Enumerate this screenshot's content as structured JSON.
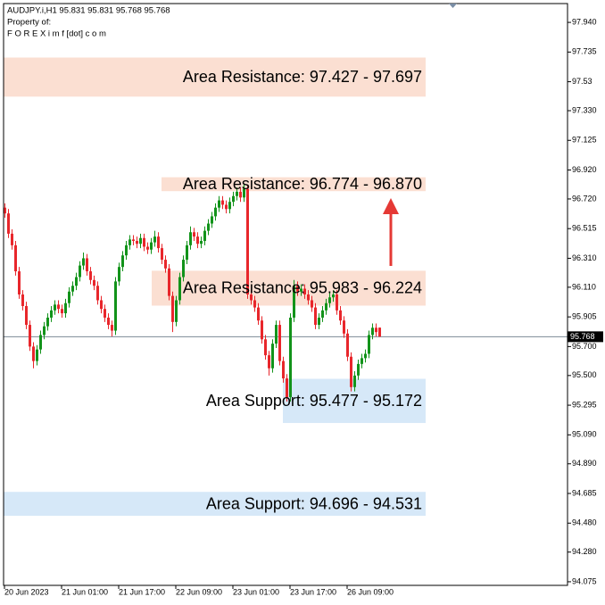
{
  "chart_data": {
    "type": "candlestick",
    "header": [
      "AUDJPY.i,H1  95.831 95.831 95.768 95.768",
      "Property of:",
      "F O R E X i m f [dot] c o m"
    ],
    "categories": [
      "20 Jun 2023",
      null,
      null,
      null,
      null,
      null,
      null,
      null,
      null,
      null,
      null,
      null,
      null,
      null,
      null,
      null,
      "21 Jun 01:00",
      null,
      null,
      null,
      null,
      null,
      null,
      null,
      null,
      null,
      null,
      null,
      null,
      null,
      null,
      null,
      "21 Jun 17:00",
      null,
      null,
      null,
      null,
      null,
      null,
      null,
      null,
      null,
      null,
      null,
      null,
      null,
      null,
      null,
      "22 Jun 09:00",
      null,
      null,
      null,
      null,
      null,
      null,
      null,
      null,
      null,
      null,
      null,
      null,
      null,
      null,
      null,
      "23 Jun 01:00",
      null,
      null,
      null,
      null,
      null,
      null,
      null,
      null,
      null,
      null,
      null,
      null,
      null,
      null,
      null,
      "23 Jun 17:00",
      null,
      null,
      null,
      null,
      null,
      null,
      null,
      null,
      null,
      null,
      null,
      null,
      null,
      null,
      null,
      "26 Jun 09:00",
      null,
      null,
      null,
      null,
      null,
      null,
      null,
      null,
      null
    ],
    "open": [
      96.66,
      96.62,
      96.48,
      96.4,
      96.22,
      96.06,
      95.98,
      95.85,
      95.7,
      95.6,
      95.68,
      95.78,
      95.84,
      95.9,
      95.95,
      95.99,
      95.96,
      95.93,
      96.0,
      96.08,
      96.12,
      96.18,
      96.26,
      96.31,
      96.22,
      96.16,
      96.12,
      96.02,
      95.96,
      95.9,
      95.85,
      95.81,
      96.15,
      96.25,
      96.33,
      96.4,
      96.44,
      96.43,
      96.41,
      96.45,
      96.39,
      96.37,
      96.42,
      96.46,
      96.38,
      96.3,
      96.24,
      96.05,
      95.87,
      96.02,
      96.18,
      96.3,
      96.4,
      96.49,
      96.46,
      96.41,
      96.43,
      96.5,
      96.55,
      96.6,
      96.66,
      96.71,
      96.68,
      96.65,
      96.7,
      96.74,
      96.77,
      96.73,
      96.79,
      96.06,
      96.02,
      95.97,
      95.88,
      95.75,
      95.64,
      95.55,
      95.72,
      95.85,
      95.6,
      95.48,
      95.35,
      95.9,
      96.12,
      96.08,
      96.1,
      96.06,
      96.02,
      95.97,
      95.85,
      95.9,
      95.95,
      96.0,
      96.04,
      96.06,
      95.95,
      95.88,
      95.79,
      95.63,
      95.42,
      95.5,
      95.58,
      95.62,
      95.65,
      95.78,
      95.83,
      95.831
    ],
    "high": [
      96.69,
      96.65,
      96.51,
      96.43,
      96.25,
      96.09,
      96.01,
      95.88,
      95.73,
      95.71,
      95.81,
      95.87,
      95.93,
      95.98,
      96.02,
      96.02,
      95.99,
      96.03,
      96.11,
      96.15,
      96.21,
      96.29,
      96.35,
      96.34,
      96.25,
      96.19,
      96.15,
      96.05,
      95.99,
      95.93,
      95.88,
      96.18,
      96.28,
      96.36,
      96.43,
      96.47,
      96.47,
      96.46,
      96.48,
      96.48,
      96.42,
      96.45,
      96.5,
      96.49,
      96.41,
      96.33,
      96.27,
      96.08,
      96.05,
      96.21,
      96.33,
      96.43,
      96.53,
      96.52,
      96.49,
      96.46,
      96.53,
      96.58,
      96.63,
      96.69,
      96.74,
      96.74,
      96.71,
      96.73,
      96.77,
      96.8,
      96.8,
      96.82,
      96.82,
      96.09,
      96.05,
      96.0,
      95.91,
      95.78,
      95.67,
      95.75,
      95.88,
      95.88,
      95.63,
      95.51,
      95.93,
      96.16,
      96.15,
      96.13,
      96.13,
      96.09,
      96.05,
      96.0,
      95.93,
      95.98,
      96.03,
      96.07,
      96.09,
      96.09,
      95.98,
      95.91,
      95.82,
      95.66,
      95.53,
      95.61,
      95.65,
      95.68,
      95.81,
      95.86,
      95.86,
      95.831
    ],
    "low": [
      96.59,
      96.45,
      96.37,
      96.19,
      96.03,
      95.95,
      95.82,
      95.67,
      95.55,
      95.57,
      95.65,
      95.75,
      95.81,
      95.87,
      95.92,
      95.93,
      95.9,
      95.9,
      95.97,
      96.05,
      96.09,
      96.15,
      96.23,
      96.19,
      96.13,
      96.09,
      95.99,
      95.93,
      95.87,
      95.82,
      95.77,
      95.78,
      96.12,
      96.22,
      96.3,
      96.37,
      96.4,
      96.38,
      96.38,
      96.36,
      96.34,
      96.34,
      96.39,
      96.35,
      96.27,
      96.21,
      96.02,
      95.8,
      95.84,
      95.99,
      96.15,
      96.27,
      96.37,
      96.43,
      96.38,
      96.38,
      96.4,
      96.47,
      96.52,
      96.57,
      96.63,
      96.65,
      96.62,
      96.62,
      96.67,
      96.71,
      96.7,
      96.7,
      96.03,
      95.99,
      95.94,
      95.85,
      95.72,
      95.61,
      95.5,
      95.52,
      95.69,
      95.57,
      95.45,
      95.32,
      95.32,
      95.87,
      96.05,
      96.05,
      96.03,
      95.99,
      95.94,
      95.82,
      95.82,
      95.87,
      95.92,
      95.97,
      96.01,
      95.92,
      95.85,
      95.76,
      95.6,
      95.39,
      95.39,
      95.47,
      95.55,
      95.59,
      95.62,
      95.75,
      95.77,
      95.768
    ],
    "close": [
      96.62,
      96.48,
      96.4,
      96.22,
      96.06,
      95.98,
      95.85,
      95.7,
      95.6,
      95.68,
      95.78,
      95.84,
      95.9,
      95.95,
      95.99,
      95.96,
      95.93,
      96.0,
      96.08,
      96.12,
      96.18,
      96.26,
      96.31,
      96.22,
      96.16,
      96.12,
      96.02,
      95.96,
      95.9,
      95.85,
      95.81,
      96.15,
      96.25,
      96.33,
      96.4,
      96.44,
      96.43,
      96.41,
      96.45,
      96.39,
      96.37,
      96.42,
      96.46,
      96.38,
      96.3,
      96.24,
      96.05,
      95.87,
      96.02,
      96.18,
      96.3,
      96.4,
      96.49,
      96.46,
      96.41,
      96.43,
      96.5,
      96.55,
      96.6,
      96.66,
      96.71,
      96.68,
      96.65,
      96.7,
      96.74,
      96.77,
      96.73,
      96.79,
      96.06,
      96.02,
      95.97,
      95.88,
      95.75,
      95.64,
      95.55,
      95.72,
      95.85,
      95.6,
      95.48,
      95.35,
      95.9,
      96.12,
      96.08,
      96.1,
      96.06,
      96.02,
      95.97,
      95.85,
      95.9,
      95.95,
      96.0,
      96.04,
      96.06,
      95.95,
      95.88,
      95.79,
      95.63,
      95.42,
      95.5,
      95.58,
      95.62,
      95.65,
      95.78,
      95.83,
      95.8,
      95.768
    ],
    "up_color": "#12931a",
    "down_color": "#e8262b",
    "last_price": 95.768,
    "zones": [
      {
        "label": "Area Resistance: 97.427 - 97.697",
        "low": 97.427,
        "high": 97.697,
        "color": "#fbdfd2"
      },
      {
        "label": "Area Resistance: 96.774 - 96.870",
        "low": 96.774,
        "high": 96.87,
        "color": "#fbdfd2"
      },
      {
        "label": "Area Resistance: 95.983 - 96.224",
        "low": 95.983,
        "high": 96.224,
        "color": "#fbdfd2"
      },
      {
        "label": "Area Support: 95.477 - 95.172",
        "low": 95.172,
        "high": 95.477,
        "color": "#d6e8f8"
      },
      {
        "label": "Area Support: 94.696 - 94.531",
        "low": 94.531,
        "high": 94.696,
        "color": "#d6e8f8"
      }
    ],
    "ylim": [
      94.05,
      98.07
    ],
    "yticks": [
      {
        "value": 97.94,
        "label": "97.940"
      },
      97.735,
      97.53,
      {
        "value": 97.33,
        "label": "97.330"
      },
      97.125,
      {
        "value": 96.92,
        "label": "96.920"
      },
      {
        "value": 96.72,
        "label": "96.720"
      },
      96.515,
      {
        "value": 96.31,
        "label": "96.310"
      },
      {
        "value": 96.11,
        "label": "96.110"
      },
      95.905,
      {
        "value": 95.7,
        "label": "95.700"
      },
      {
        "value": 95.5,
        "label": "95.500"
      },
      95.295,
      {
        "value": 95.09,
        "label": "95.090"
      },
      {
        "value": 94.89,
        "label": "94.890"
      },
      94.685,
      {
        "value": 94.48,
        "label": "94.480"
      },
      {
        "value": 94.28,
        "label": "94.280"
      },
      94.075
    ]
  }
}
